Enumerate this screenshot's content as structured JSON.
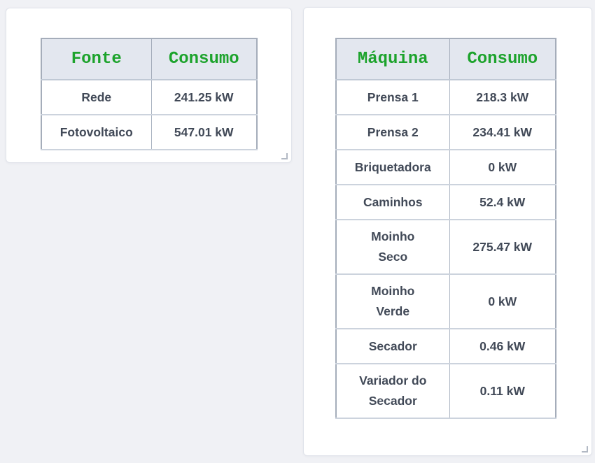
{
  "colors": {
    "accent_green": "#1da32c",
    "body_text": "#414957",
    "header_background": "#e3e7ef",
    "page_background": "#f0f1f5"
  },
  "fonte_card": {
    "table": {
      "headers": [
        "Fonte",
        "Consumo"
      ],
      "rows": [
        {
          "label": "Rede",
          "value": "241.25 kW"
        },
        {
          "label": "Fotovoltaico",
          "value": "547.01 kW"
        }
      ]
    }
  },
  "maquina_card": {
    "table": {
      "headers": [
        "Máquina",
        "Consumo"
      ],
      "rows": [
        {
          "label": "Prensa 1",
          "value": "218.3 kW"
        },
        {
          "label": "Prensa 2",
          "value": "234.41 kW"
        },
        {
          "label": "Briquetadora",
          "value": "0 kW"
        },
        {
          "label": "Caminhos",
          "value": "52.4 kW"
        },
        {
          "label": "Moinho\nSeco",
          "value": "275.47 kW"
        },
        {
          "label": "Moinho\nVerde",
          "value": "0 kW"
        },
        {
          "label": "Secador",
          "value": "0.46 kW"
        },
        {
          "label": "Variador do\nSecador",
          "value": "0.11 kW"
        }
      ]
    }
  }
}
